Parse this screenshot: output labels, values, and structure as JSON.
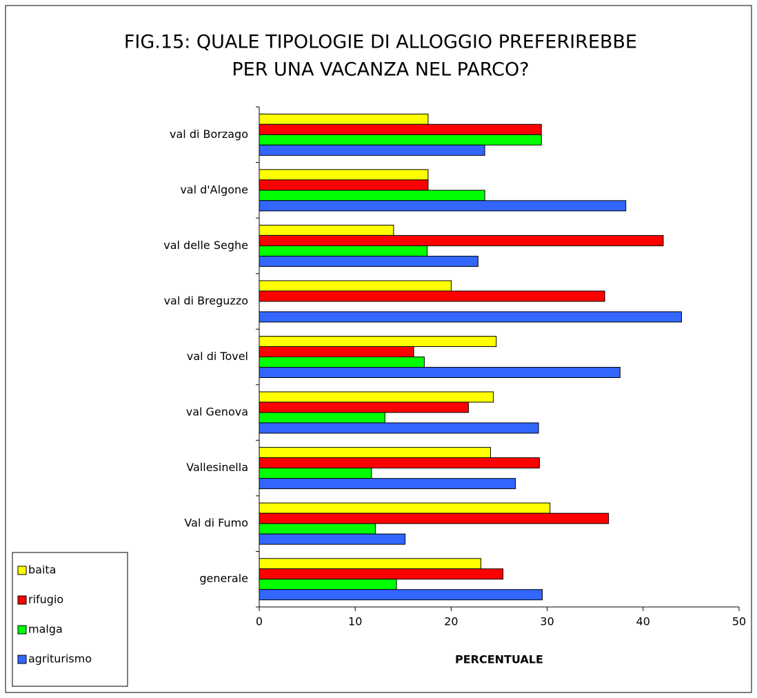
{
  "chart_data": {
    "type": "hbar",
    "title": [
      "FIG.15: QUALE TIPOLOGIE DI ALLOGGIO PREFERIREBBE",
      "PER UNA VACANZA NEL PARCO?"
    ],
    "x_label": "PERCENTUALE",
    "categories": [
      "val di Borzago",
      "val d'Algone",
      "val delle Seghe",
      "val di Breguzzo",
      "val di Tovel",
      "val Genova",
      "Vallesinella",
      "Val di Fumo",
      "generale"
    ],
    "series": [
      {
        "name": "baita",
        "color": "#ffff00",
        "values": [
          17.6,
          17.6,
          14.0,
          20.0,
          24.7,
          24.4,
          24.1,
          30.3,
          23.1
        ]
      },
      {
        "name": "rifugio",
        "color": "#ff0000",
        "values": [
          29.4,
          17.6,
          42.1,
          36.0,
          16.1,
          21.8,
          29.2,
          36.4,
          25.4
        ]
      },
      {
        "name": "malga",
        "color": "#00ff00",
        "values": [
          29.4,
          23.5,
          17.5,
          0,
          17.2,
          13.1,
          11.7,
          12.1,
          14.3
        ]
      },
      {
        "name": "agriturismo",
        "color": "#3366ff",
        "values": [
          23.5,
          38.2,
          22.8,
          44.0,
          37.6,
          29.1,
          26.7,
          15.2,
          29.5
        ]
      }
    ],
    "xlim": [
      0,
      50
    ],
    "xticks": [
      0,
      10,
      20,
      30,
      40,
      50
    ],
    "legend": "bottom-left"
  }
}
